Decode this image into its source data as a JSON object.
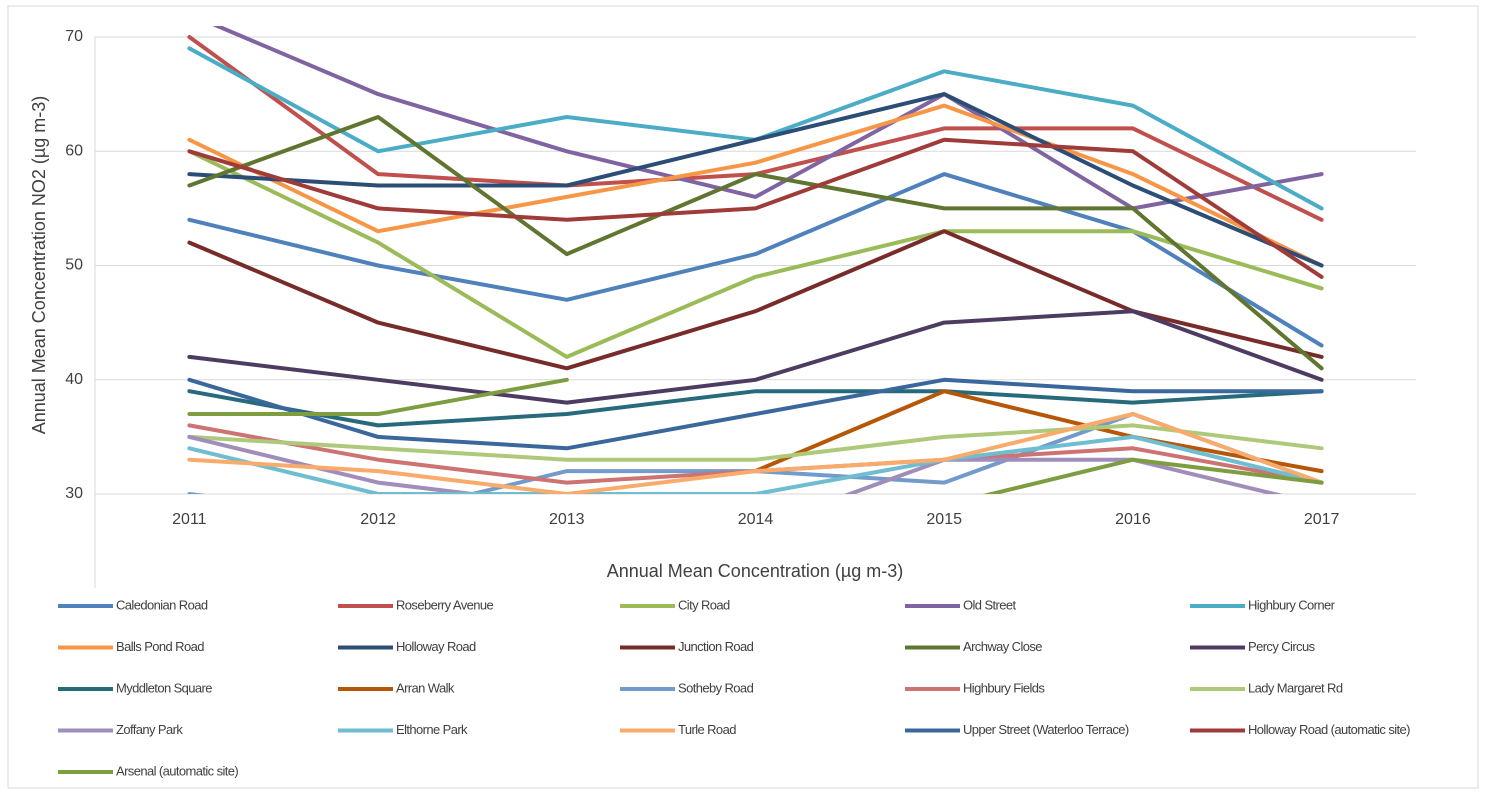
{
  "chart_data": {
    "type": "line",
    "x_label": "Annual Mean Concentration (µg m-3)",
    "y_label": "Annual Mean Concentration NO2 (µg m-3)",
    "categories": [
      "2011",
      "2012",
      "2013",
      "2014",
      "2015",
      "2016",
      "2017"
    ],
    "ylim": [
      30,
      70
    ],
    "yticks": [
      30,
      40,
      50,
      60,
      70
    ],
    "grid": true,
    "legend": "bottom",
    "series": [
      {
        "name": "Caledonian Road",
        "color": "#4F81BD",
        "values": [
          54,
          50,
          47,
          51,
          58,
          53,
          43
        ]
      },
      {
        "name": "Roseberry Avenue",
        "color": "#C0504D",
        "values": [
          70,
          58,
          57,
          58,
          62,
          62,
          54
        ]
      },
      {
        "name": "City Road",
        "color": "#9BBB59",
        "values": [
          60,
          52,
          42,
          49,
          53,
          53,
          48
        ]
      },
      {
        "name": "Old Street",
        "color": "#8064A2",
        "values": [
          72,
          65,
          60,
          56,
          65,
          55,
          58
        ]
      },
      {
        "name": "Highbury Corner",
        "color": "#4BACC6",
        "values": [
          69,
          60,
          63,
          61,
          67,
          64,
          55
        ]
      },
      {
        "name": "Balls Pond Road",
        "color": "#F79646",
        "values": [
          61,
          53,
          56,
          59,
          64,
          58,
          50
        ]
      },
      {
        "name": "Holloway Road",
        "color": "#2C4D75",
        "values": [
          58,
          57,
          57,
          61,
          65,
          57,
          50
        ]
      },
      {
        "name": "Junction Road",
        "color": "#772C2A",
        "values": [
          52,
          45,
          41,
          46,
          53,
          46,
          42
        ]
      },
      {
        "name": "Archway Close",
        "color": "#5F7530",
        "values": [
          57,
          63,
          51,
          58,
          55,
          55,
          41
        ]
      },
      {
        "name": "Percy Circus",
        "color": "#4D3B62",
        "values": [
          42,
          40,
          38,
          40,
          45,
          46,
          40
        ]
      },
      {
        "name": "Myddleton Square",
        "color": "#276A7C",
        "values": [
          39,
          36,
          37,
          39,
          39,
          38,
          39
        ]
      },
      {
        "name": "Arran Walk",
        "color": "#B65708",
        "values": [
          null,
          null,
          null,
          32,
          39,
          35,
          32
        ]
      },
      {
        "name": "Sotheby Road",
        "color": "#729ACA",
        "values": [
          30,
          28,
          32,
          32,
          31,
          37,
          31
        ]
      },
      {
        "name": "Highbury Fields",
        "color": "#CD7371",
        "values": [
          36,
          33,
          31,
          32,
          33,
          34,
          31
        ]
      },
      {
        "name": "Lady Margaret Rd",
        "color": "#AFC97A",
        "values": [
          35,
          34,
          33,
          33,
          35,
          36,
          34
        ]
      },
      {
        "name": "Zoffany Park",
        "color": "#A18DB9",
        "values": [
          35,
          31,
          29,
          27,
          33,
          33,
          29
        ]
      },
      {
        "name": "Elthorne Park",
        "color": "#6FBDD1",
        "values": [
          34,
          30,
          30,
          30,
          33,
          35,
          31
        ]
      },
      {
        "name": "Turle Road",
        "color": "#F9AB6B",
        "values": [
          33,
          32,
          30,
          32,
          33,
          37,
          31
        ]
      },
      {
        "name": "Upper Street (Waterloo Terrace)",
        "color": "#3A679C",
        "values": [
          40,
          35,
          34,
          37,
          40,
          39,
          39
        ]
      },
      {
        "name": "Holloway Road (automatic site)",
        "color": "#9F3B38",
        "values": [
          60,
          55,
          54,
          55,
          61,
          60,
          49
        ]
      },
      {
        "name": "Arsenal (automatic site)",
        "color": "#7E9C40",
        "values": [
          37,
          37,
          40,
          null,
          29,
          33,
          31
        ]
      }
    ]
  }
}
